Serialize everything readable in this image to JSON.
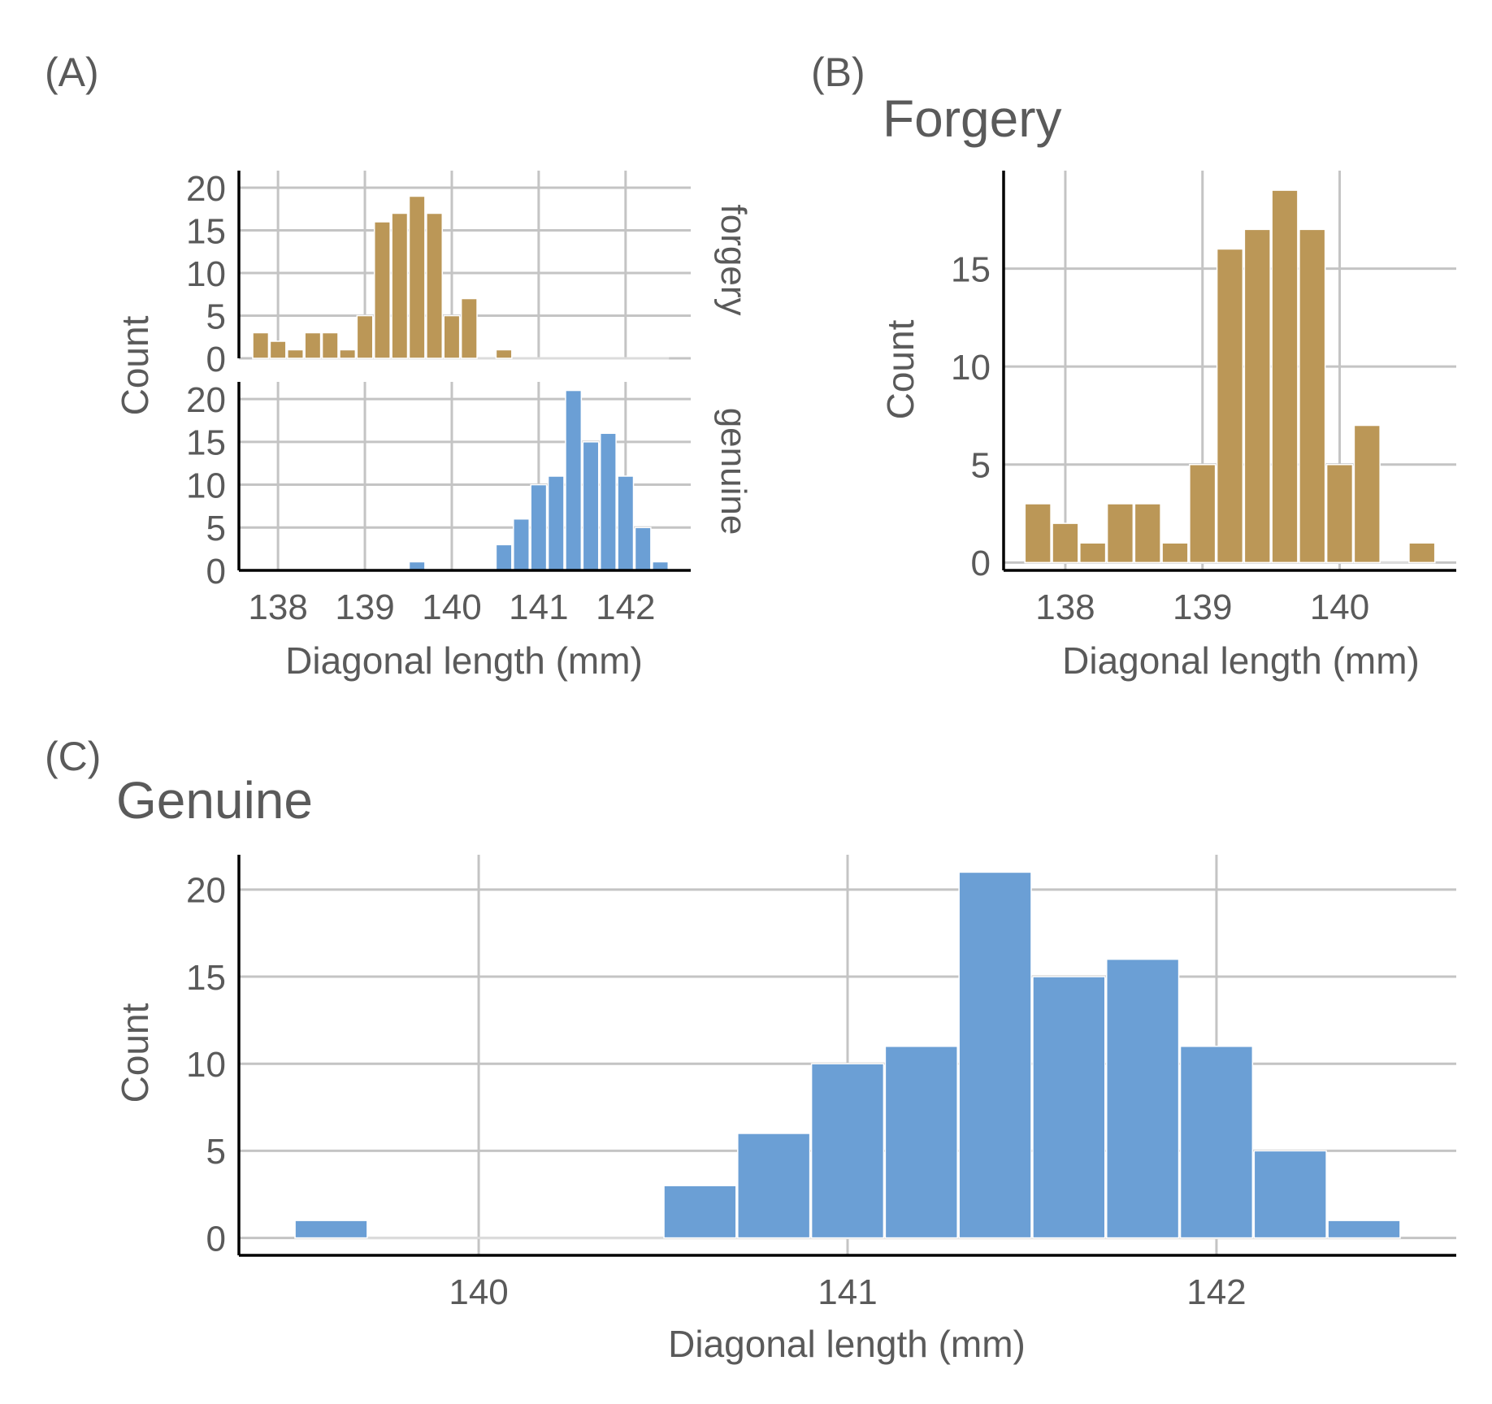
{
  "colors": {
    "forgery": "#bb9757",
    "genuine": "#6b9fd5",
    "text": "#5a5a5a",
    "grid": "#c4c4c4"
  },
  "panels": {
    "a": {
      "tag": "(A)",
      "strip_top": "forgery",
      "strip_bottom": "genuine",
      "xlabel": "Diagonal length (mm)",
      "ylabel": "Count"
    },
    "b": {
      "tag": "(B)",
      "title": "Forgery",
      "xlabel": "Diagonal length (mm)",
      "ylabel": "Count"
    },
    "c": {
      "tag": "(C)",
      "title": "Genuine",
      "xlabel": "Diagonal length (mm)",
      "ylabel": "Count"
    }
  },
  "chart_data": [
    {
      "id": "a",
      "type": "bar",
      "title": "",
      "xlabel": "Diagonal length (mm)",
      "ylabel": "Count",
      "xlim": [
        137.55,
        142.75
      ],
      "ylim": [
        0,
        22
      ],
      "xticks": [
        138,
        139,
        140,
        141,
        142
      ],
      "yticks": [
        0,
        5,
        10,
        15,
        20
      ],
      "bin_width": 0.2,
      "facets": [
        {
          "name": "forgery",
          "series": "forgery",
          "bin_starts": [
            137.7,
            137.9,
            138.1,
            138.3,
            138.5,
            138.7,
            138.9,
            139.1,
            139.3,
            139.5,
            139.7,
            139.9,
            140.1,
            140.3,
            140.5,
            140.7,
            140.9,
            141.1,
            141.3,
            141.5,
            141.7,
            141.9,
            142.1,
            142.3
          ],
          "counts": [
            3,
            2,
            1,
            3,
            3,
            1,
            5,
            16,
            17,
            19,
            17,
            5,
            7,
            0,
            1,
            0,
            0,
            0,
            0,
            0,
            0,
            0,
            0,
            0
          ]
        },
        {
          "name": "genuine",
          "series": "genuine",
          "bin_starts": [
            137.7,
            137.9,
            138.1,
            138.3,
            138.5,
            138.7,
            138.9,
            139.1,
            139.3,
            139.5,
            139.7,
            139.9,
            140.1,
            140.3,
            140.5,
            140.7,
            140.9,
            141.1,
            141.3,
            141.5,
            141.7,
            141.9,
            142.1,
            142.3
          ],
          "counts": [
            0,
            0,
            0,
            0,
            0,
            0,
            0,
            0,
            0,
            1,
            0,
            0,
            0,
            0,
            3,
            6,
            10,
            11,
            21,
            15,
            16,
            11,
            5,
            1
          ]
        }
      ]
    },
    {
      "id": "b",
      "type": "bar",
      "title": "Forgery",
      "xlabel": "Diagonal length (mm)",
      "ylabel": "Count",
      "xlim": [
        137.55,
        140.85
      ],
      "ylim": [
        -0.4,
        20
      ],
      "xticks": [
        138,
        139,
        140
      ],
      "yticks": [
        0,
        5,
        10,
        15
      ],
      "bin_width": 0.2,
      "series": "forgery",
      "bin_starts": [
        137.7,
        137.9,
        138.1,
        138.3,
        138.5,
        138.7,
        138.9,
        139.1,
        139.3,
        139.5,
        139.7,
        139.9,
        140.1,
        140.3,
        140.5
      ],
      "counts": [
        3,
        2,
        1,
        3,
        3,
        1,
        5,
        16,
        17,
        19,
        17,
        5,
        7,
        0,
        1
      ]
    },
    {
      "id": "c",
      "type": "bar",
      "title": "Genuine",
      "xlabel": "Diagonal length (mm)",
      "ylabel": "Count",
      "xlim": [
        139.35,
        142.65
      ],
      "ylim": [
        -1,
        22
      ],
      "xticks": [
        140,
        141,
        142
      ],
      "yticks": [
        0,
        5,
        10,
        15,
        20
      ],
      "bin_width": 0.2,
      "series": "genuine",
      "bin_starts": [
        139.5,
        139.7,
        139.9,
        140.1,
        140.3,
        140.5,
        140.7,
        140.9,
        141.1,
        141.3,
        141.5,
        141.7,
        141.9,
        142.1,
        142.3
      ],
      "counts": [
        1,
        0,
        0,
        0,
        0,
        3,
        6,
        10,
        11,
        21,
        15,
        16,
        11,
        5,
        1
      ]
    }
  ]
}
